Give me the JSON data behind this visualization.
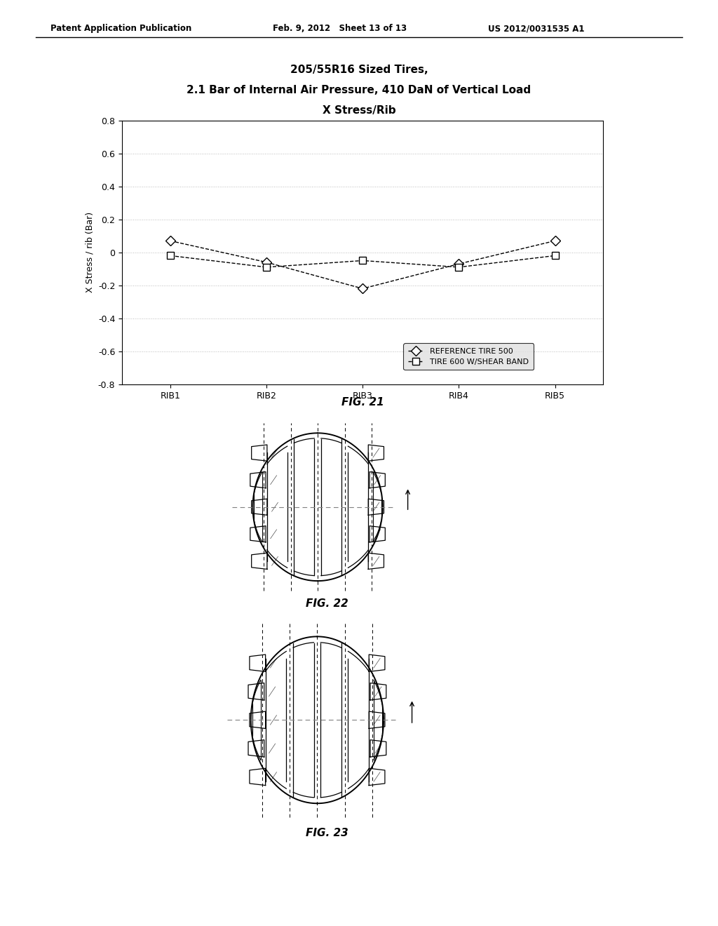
{
  "header_left": "Patent Application Publication",
  "header_mid": "Feb. 9, 2012   Sheet 13 of 13",
  "header_right": "US 2012/0031535 A1",
  "title_line1": "205/55R16 Sized Tires,",
  "title_line2": "2.1 Bar of Internal Air Pressure, 410 DaN of Vertical Load",
  "title_line3": "X Stress/Rib",
  "ylabel": "X Stress / rib (Bar)",
  "xlabel_ticks": [
    "RIB1",
    "RIB2",
    "RIB3",
    "RIB4",
    "RIB5"
  ],
  "ylim": [
    -0.8,
    0.8
  ],
  "yticks": [
    -0.8,
    -0.6,
    -0.4,
    -0.2,
    0.0,
    0.2,
    0.4,
    0.6,
    0.8
  ],
  "series1_label": "REFERENCE TIRE 500",
  "series1_y": [
    0.07,
    -0.06,
    -0.22,
    -0.07,
    0.07
  ],
  "series2_label": "TIRE 600 W/SHEAR BAND",
  "series2_y": [
    -0.02,
    -0.09,
    -0.05,
    -0.09,
    -0.02
  ],
  "fig21_label": "FIG. 21",
  "fig22_label": "FIG. 22",
  "fig23_label": "FIG. 23",
  "bg_color": "#ffffff",
  "line_color": "#000000",
  "grid_color": "#bbbbbb"
}
